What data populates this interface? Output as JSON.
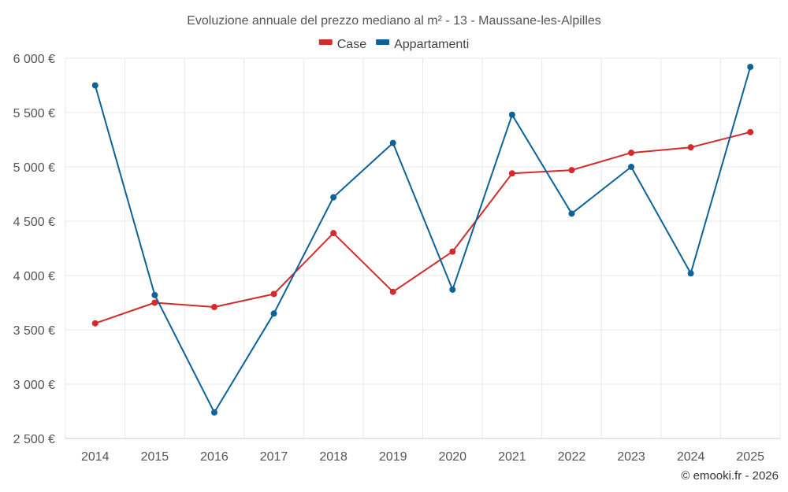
{
  "chart_data": {
    "type": "line",
    "title": "Evoluzione annuale del prezzo mediano al m² - 13 - Maussane-les-Alpilles",
    "categories": [
      "2014",
      "2015",
      "2016",
      "2017",
      "2018",
      "2019",
      "2020",
      "2021",
      "2022",
      "2023",
      "2024",
      "2025"
    ],
    "series": [
      {
        "name": "Case",
        "color": "#d42a2a",
        "values": [
          3560,
          3750,
          3710,
          3830,
          4390,
          3850,
          4220,
          4940,
          4970,
          5130,
          5180,
          5320
        ]
      },
      {
        "name": "Appartamenti",
        "color": "#0d6399",
        "values": [
          5750,
          3820,
          2740,
          3650,
          4720,
          5220,
          3870,
          5480,
          4570,
          5000,
          4020,
          5920
        ]
      }
    ],
    "ylim": [
      2500,
      6000
    ],
    "yticks": [
      2500,
      3000,
      3500,
      4000,
      4500,
      5000,
      5500,
      6000
    ],
    "ytick_labels": [
      "2 500 €",
      "3 000 €",
      "3 500 €",
      "4 000 €",
      "4 500 €",
      "5 000 €",
      "5 500 €",
      "6 000 €"
    ],
    "xlabel": "",
    "ylabel": "",
    "grid": true,
    "legend_position": "top-center"
  },
  "credit": "© emooki.fr - 2026"
}
